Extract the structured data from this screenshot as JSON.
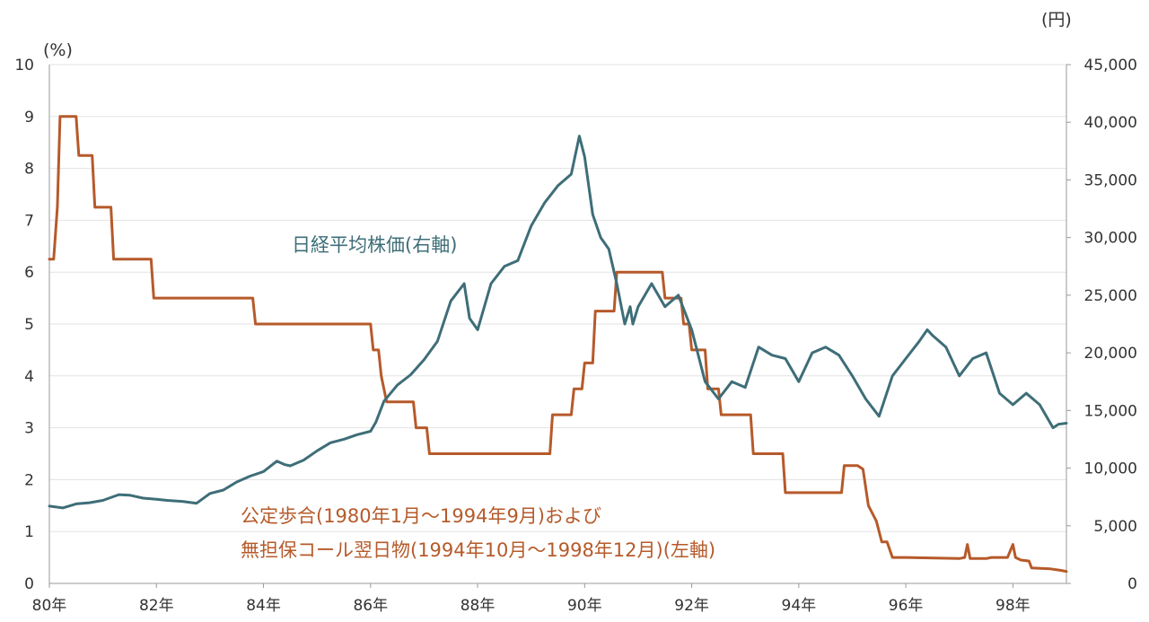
{
  "chart_data": {
    "type": "line",
    "xlabel": "",
    "x_ticks": [
      "80年",
      "82年",
      "84年",
      "86年",
      "88年",
      "90年",
      "92年",
      "94年",
      "96年",
      "98年"
    ],
    "x_range": [
      1980,
      1999
    ],
    "left_axis": {
      "unit": "(%)",
      "ticks": [
        "0",
        "1",
        "2",
        "3",
        "4",
        "5",
        "6",
        "7",
        "8",
        "9",
        "10"
      ],
      "ylim": [
        0,
        10
      ]
    },
    "right_axis": {
      "unit": "(円)",
      "ticks": [
        "0",
        "5,000",
        "10,000",
        "15,000",
        "20,000",
        "25,000",
        "30,000",
        "35,000",
        "40,000",
        "45,000"
      ],
      "ylim": [
        0,
        45000
      ]
    },
    "grid": "horizontal",
    "annotations": {
      "nikkei": "日経平均株価(右軸)",
      "rate_line1": "公定歩合(1980年1月～1994年9月)および",
      "rate_line2": "無担保コール翌日物(1994年10月～1998年12月)(左軸)"
    },
    "series": [
      {
        "key": "rate",
        "axis": "left",
        "color": "#b65a2a",
        "points": [
          [
            1980.0,
            6.25
          ],
          [
            1980.08,
            6.25
          ],
          [
            1980.15,
            7.25
          ],
          [
            1980.2,
            9.0
          ],
          [
            1980.5,
            9.0
          ],
          [
            1980.55,
            8.25
          ],
          [
            1980.8,
            8.25
          ],
          [
            1980.85,
            7.25
          ],
          [
            1981.15,
            7.25
          ],
          [
            1981.2,
            6.25
          ],
          [
            1981.9,
            6.25
          ],
          [
            1981.95,
            5.5
          ],
          [
            1983.8,
            5.5
          ],
          [
            1983.85,
            5.0
          ],
          [
            1986.0,
            5.0
          ],
          [
            1986.05,
            4.5
          ],
          [
            1986.15,
            4.5
          ],
          [
            1986.2,
            4.0
          ],
          [
            1986.3,
            3.5
          ],
          [
            1986.8,
            3.5
          ],
          [
            1986.85,
            3.0
          ],
          [
            1987.05,
            3.0
          ],
          [
            1987.1,
            2.5
          ],
          [
            1989.35,
            2.5
          ],
          [
            1989.4,
            3.25
          ],
          [
            1989.75,
            3.25
          ],
          [
            1989.8,
            3.75
          ],
          [
            1989.95,
            3.75
          ],
          [
            1990.0,
            4.25
          ],
          [
            1990.15,
            4.25
          ],
          [
            1990.2,
            5.25
          ],
          [
            1990.55,
            5.25
          ],
          [
            1990.6,
            6.0
          ],
          [
            1991.45,
            6.0
          ],
          [
            1991.5,
            5.5
          ],
          [
            1991.8,
            5.5
          ],
          [
            1991.85,
            5.0
          ],
          [
            1991.95,
            5.0
          ],
          [
            1992.0,
            4.5
          ],
          [
            1992.25,
            4.5
          ],
          [
            1992.3,
            3.75
          ],
          [
            1992.5,
            3.75
          ],
          [
            1992.55,
            3.25
          ],
          [
            1993.1,
            3.25
          ],
          [
            1993.15,
            2.5
          ],
          [
            1993.7,
            2.5
          ],
          [
            1993.75,
            1.75
          ],
          [
            1994.8,
            1.75
          ],
          [
            1994.85,
            2.27
          ],
          [
            1995.1,
            2.27
          ],
          [
            1995.2,
            2.2
          ],
          [
            1995.3,
            1.5
          ],
          [
            1995.45,
            1.2
          ],
          [
            1995.55,
            0.8
          ],
          [
            1995.65,
            0.8
          ],
          [
            1995.75,
            0.5
          ],
          [
            1995.85,
            0.5
          ],
          [
            1996.0,
            0.5
          ],
          [
            1997.0,
            0.48
          ],
          [
            1997.1,
            0.5
          ],
          [
            1997.15,
            0.75
          ],
          [
            1997.2,
            0.48
          ],
          [
            1997.5,
            0.48
          ],
          [
            1997.6,
            0.5
          ],
          [
            1997.9,
            0.5
          ],
          [
            1998.0,
            0.75
          ],
          [
            1998.05,
            0.5
          ],
          [
            1998.15,
            0.45
          ],
          [
            1998.3,
            0.43
          ],
          [
            1998.35,
            0.3
          ],
          [
            1998.7,
            0.28
          ],
          [
            1998.9,
            0.25
          ],
          [
            1999.0,
            0.23
          ]
        ]
      },
      {
        "key": "nikkei",
        "axis": "right",
        "color": "#3e6e78",
        "points": [
          [
            1980.0,
            6700
          ],
          [
            1980.25,
            6550
          ],
          [
            1980.5,
            6900
          ],
          [
            1980.75,
            7000
          ],
          [
            1981.0,
            7200
          ],
          [
            1981.3,
            7700
          ],
          [
            1981.5,
            7650
          ],
          [
            1981.75,
            7400
          ],
          [
            1982.0,
            7300
          ],
          [
            1982.2,
            7200
          ],
          [
            1982.5,
            7100
          ],
          [
            1982.75,
            6950
          ],
          [
            1983.0,
            7800
          ],
          [
            1983.25,
            8100
          ],
          [
            1983.5,
            8800
          ],
          [
            1983.75,
            9300
          ],
          [
            1984.0,
            9700
          ],
          [
            1984.25,
            10600
          ],
          [
            1984.4,
            10300
          ],
          [
            1984.5,
            10200
          ],
          [
            1984.75,
            10700
          ],
          [
            1985.0,
            11500
          ],
          [
            1985.25,
            12200
          ],
          [
            1985.5,
            12500
          ],
          [
            1985.75,
            12900
          ],
          [
            1986.0,
            13200
          ],
          [
            1986.1,
            14000
          ],
          [
            1986.25,
            15800
          ],
          [
            1986.5,
            17200
          ],
          [
            1986.75,
            18100
          ],
          [
            1987.0,
            19400
          ],
          [
            1987.25,
            21000
          ],
          [
            1987.5,
            24500
          ],
          [
            1987.75,
            26000
          ],
          [
            1987.85,
            23000
          ],
          [
            1988.0,
            22000
          ],
          [
            1988.25,
            26000
          ],
          [
            1988.5,
            27500
          ],
          [
            1988.75,
            28000
          ],
          [
            1989.0,
            31000
          ],
          [
            1989.25,
            33000
          ],
          [
            1989.5,
            34500
          ],
          [
            1989.75,
            35500
          ],
          [
            1989.9,
            38800
          ],
          [
            1990.0,
            37000
          ],
          [
            1990.15,
            32000
          ],
          [
            1990.3,
            30000
          ],
          [
            1990.45,
            29000
          ],
          [
            1990.6,
            26000
          ],
          [
            1990.75,
            22500
          ],
          [
            1990.85,
            24000
          ],
          [
            1990.9,
            22500
          ],
          [
            1991.0,
            24000
          ],
          [
            1991.25,
            26000
          ],
          [
            1991.5,
            24000
          ],
          [
            1991.75,
            25000
          ],
          [
            1992.0,
            22000
          ],
          [
            1992.25,
            17500
          ],
          [
            1992.5,
            16000
          ],
          [
            1992.75,
            17500
          ],
          [
            1993.0,
            17000
          ],
          [
            1993.25,
            20500
          ],
          [
            1993.5,
            19800
          ],
          [
            1993.75,
            19500
          ],
          [
            1994.0,
            17500
          ],
          [
            1994.25,
            20000
          ],
          [
            1994.5,
            20500
          ],
          [
            1994.75,
            19800
          ],
          [
            1995.0,
            18000
          ],
          [
            1995.25,
            16000
          ],
          [
            1995.5,
            14500
          ],
          [
            1995.75,
            18000
          ],
          [
            1996.0,
            19500
          ],
          [
            1996.25,
            21000
          ],
          [
            1996.4,
            22000
          ],
          [
            1996.5,
            21500
          ],
          [
            1996.75,
            20500
          ],
          [
            1997.0,
            18000
          ],
          [
            1997.25,
            19500
          ],
          [
            1997.5,
            20000
          ],
          [
            1997.75,
            16500
          ],
          [
            1998.0,
            15500
          ],
          [
            1998.25,
            16500
          ],
          [
            1998.5,
            15500
          ],
          [
            1998.75,
            13500
          ],
          [
            1998.85,
            13800
          ],
          [
            1999.0,
            13900
          ]
        ]
      }
    ]
  }
}
